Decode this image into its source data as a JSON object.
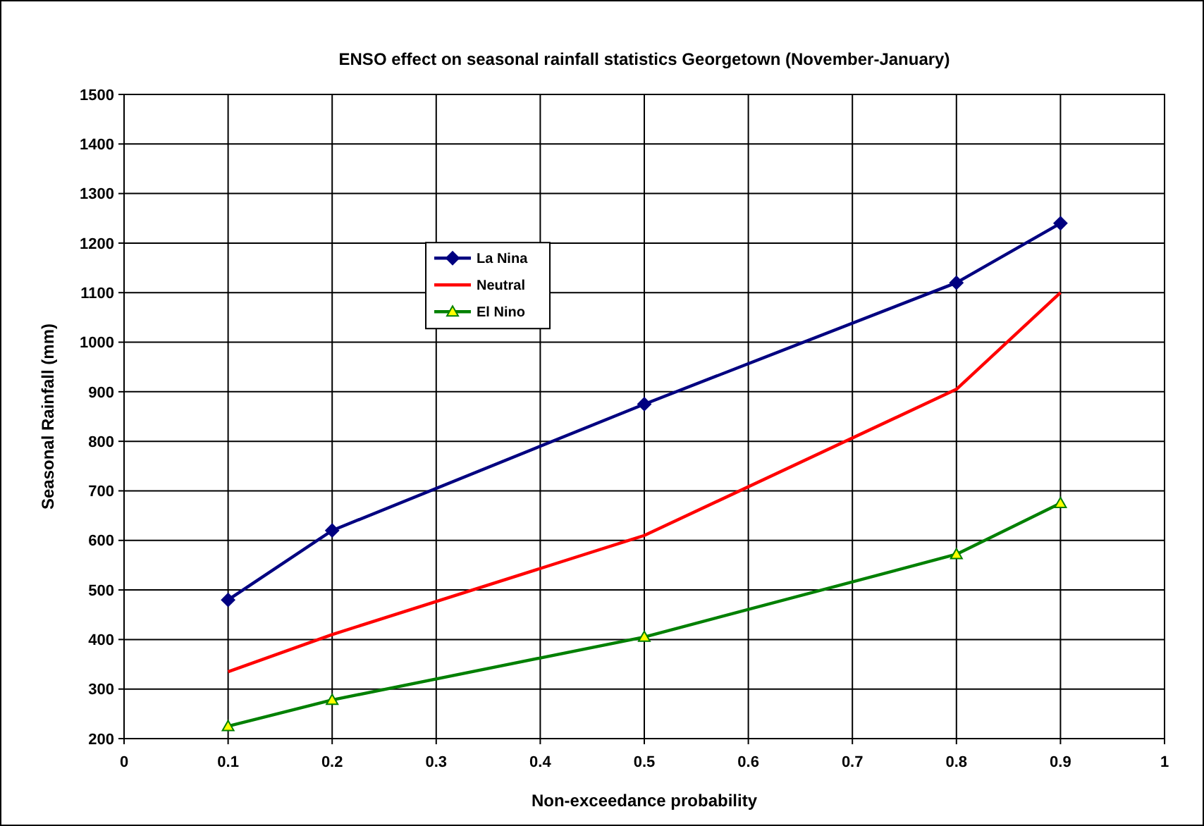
{
  "chart_data": {
    "type": "line",
    "title": "ENSO effect on seasonal rainfall statistics Georgetown (November-January)",
    "xlabel": "Non-exceedance probability",
    "ylabel": "Seasonal Rainfall (mm)",
    "x": [
      0.1,
      0.2,
      0.5,
      0.8,
      0.9
    ],
    "series": [
      {
        "name": "La Nina",
        "color": "#000080",
        "marker": "diamond",
        "values": [
          480,
          620,
          875,
          1120,
          1240
        ]
      },
      {
        "name": "Neutral",
        "color": "#ff0000",
        "marker": "none",
        "values": [
          335,
          410,
          610,
          905,
          1100
        ]
      },
      {
        "name": "El Nino",
        "color": "#008000",
        "marker": "triangle",
        "values": [
          225,
          278,
          405,
          572,
          675
        ]
      }
    ],
    "xlim": [
      0,
      1
    ],
    "xticks": [
      0,
      0.1,
      0.2,
      0.3,
      0.4,
      0.5,
      0.6,
      0.7,
      0.8,
      0.9,
      1
    ],
    "ylim": [
      200,
      1500
    ],
    "yticks": [
      200,
      300,
      400,
      500,
      600,
      700,
      800,
      900,
      1000,
      1100,
      1200,
      1300,
      1400,
      1500
    ],
    "grid": true,
    "legend": "top left",
    "line_style": "solid"
  }
}
